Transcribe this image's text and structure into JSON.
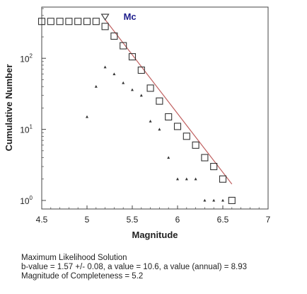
{
  "chart_data": {
    "type": "scatter",
    "xlabel": "Magnitude",
    "ylabel": "Cumulative Number",
    "xlim": [
      4.5,
      7
    ],
    "ylim_log10": [
      -0.12,
      2.72
    ],
    "y_scale": "log",
    "x_ticks": [
      "4.5",
      "5",
      "5.5",
      "6",
      "6.5",
      "7"
    ],
    "x_tick_values": [
      4.5,
      5,
      5.5,
      6,
      6.5,
      7
    ],
    "y_ticks": [
      {
        "base": "10",
        "exp": "0",
        "value": 1
      },
      {
        "base": "10",
        "exp": "1",
        "value": 10
      },
      {
        "base": "10",
        "exp": "2",
        "value": 100
      }
    ],
    "grid": false,
    "mc_label": "Mc",
    "mc_marker": {
      "x": 5.2,
      "y": 380
    },
    "series": [
      {
        "marker": "open-square",
        "color": "#333333",
        "points": [
          [
            4.5,
            330
          ],
          [
            4.6,
            330
          ],
          [
            4.7,
            330
          ],
          [
            4.8,
            330
          ],
          [
            4.9,
            330
          ],
          [
            5.0,
            330
          ],
          [
            5.1,
            330
          ],
          [
            5.2,
            280
          ],
          [
            5.3,
            205
          ],
          [
            5.4,
            150
          ],
          [
            5.5,
            105
          ],
          [
            5.6,
            68
          ],
          [
            5.7,
            38
          ],
          [
            5.8,
            25
          ],
          [
            5.9,
            15
          ],
          [
            6.0,
            11
          ],
          [
            6.1,
            8
          ],
          [
            6.2,
            6
          ],
          [
            6.3,
            4
          ],
          [
            6.4,
            3
          ],
          [
            6.5,
            2
          ],
          [
            6.6,
            1
          ]
        ]
      },
      {
        "marker": "dot",
        "color": "#333333",
        "points": [
          [
            5.0,
            15
          ],
          [
            5.1,
            40
          ],
          [
            5.2,
            75
          ],
          [
            5.3,
            60
          ],
          [
            5.4,
            45
          ],
          [
            5.5,
            36
          ],
          [
            5.6,
            30
          ],
          [
            5.7,
            13
          ],
          [
            5.8,
            10
          ],
          [
            5.9,
            4
          ],
          [
            6.0,
            2
          ],
          [
            6.1,
            2
          ],
          [
            6.2,
            2
          ],
          [
            6.3,
            1
          ],
          [
            6.4,
            1
          ],
          [
            6.5,
            1
          ]
        ]
      }
    ],
    "fit_line": {
      "color": "#c06060",
      "points": [
        [
          5.2,
          350
        ],
        [
          6.6,
          1.7
        ]
      ]
    }
  },
  "caption": {
    "line1": "Maximum Likelihood Solution",
    "line2": "b-value = 1.57 +/- 0.08,  a value = 10.6,  a value (annual) = 8.93",
    "line3": "Magnitude of Completeness = 5.2"
  }
}
